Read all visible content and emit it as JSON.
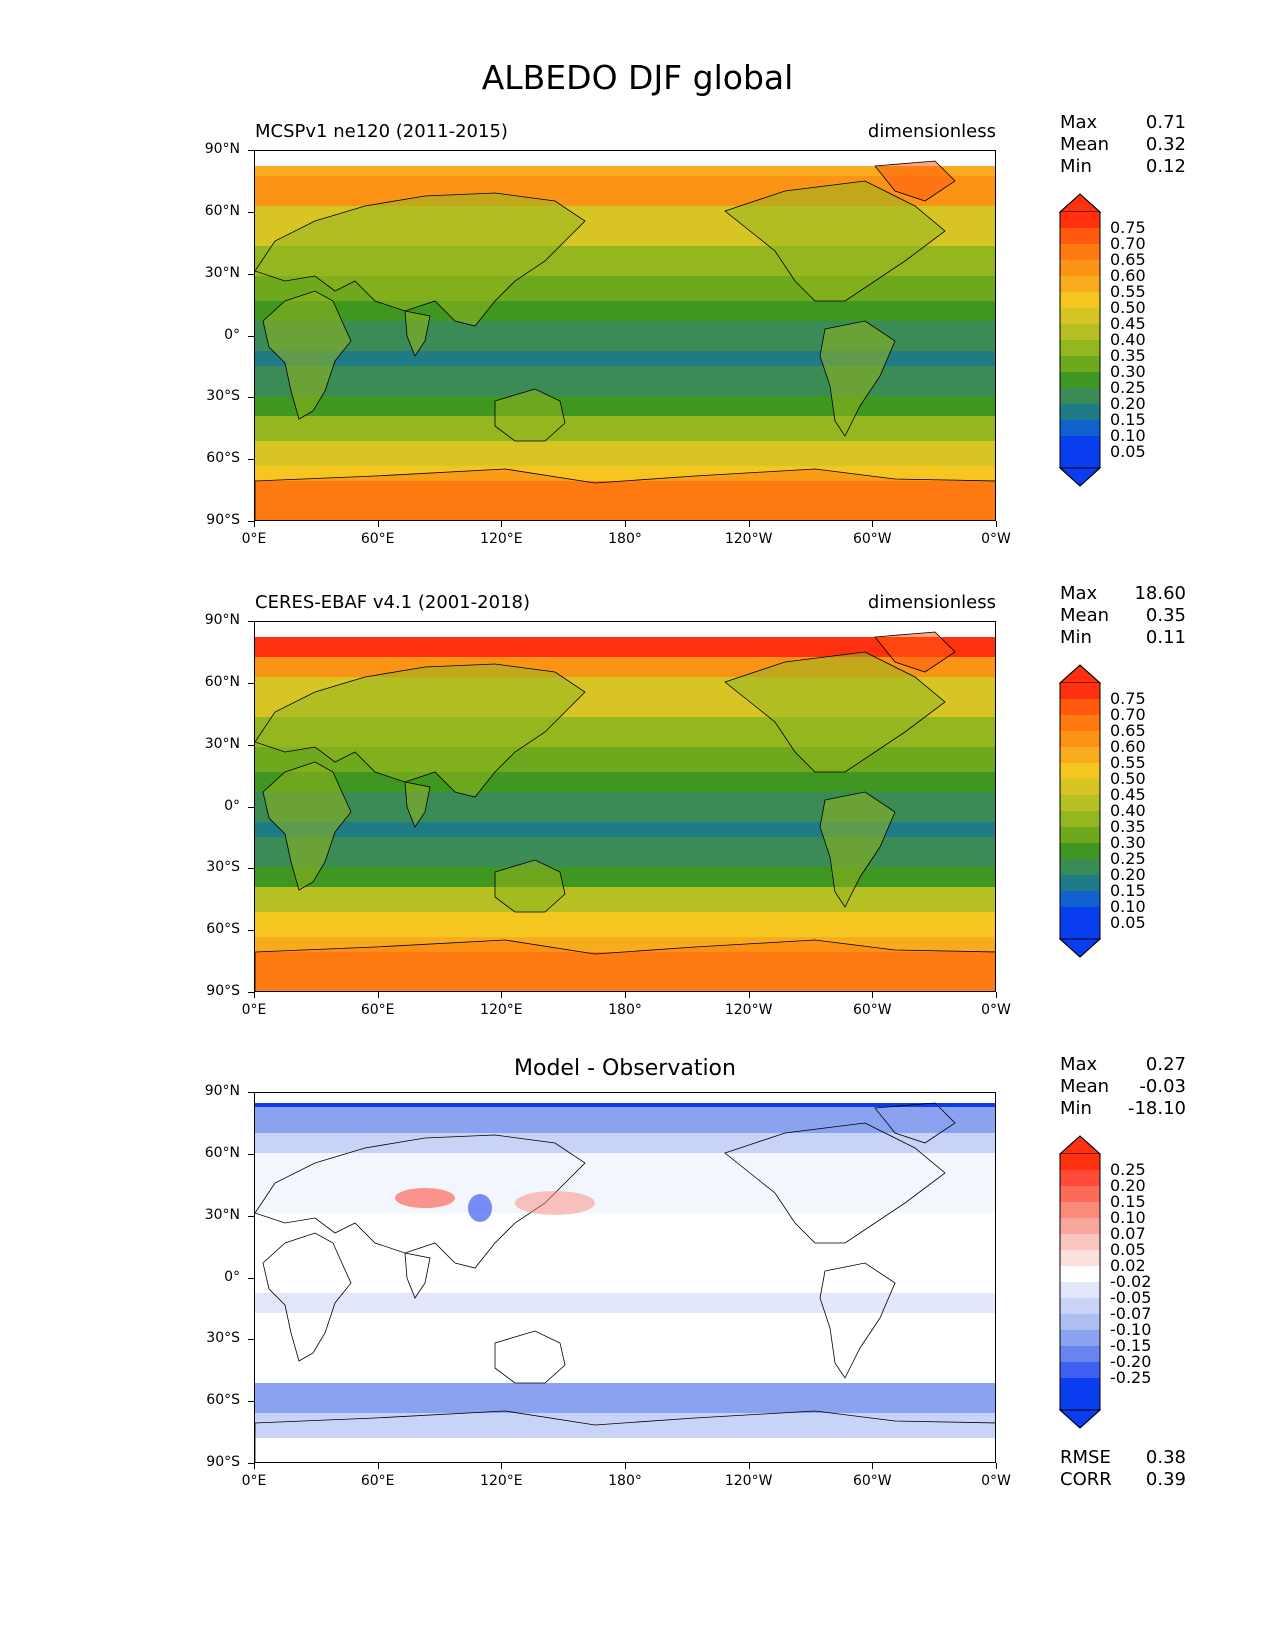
{
  "figure": {
    "title": "ALBEDO DJF global"
  },
  "axes": {
    "lat_ticks": [
      "90°N",
      "60°N",
      "30°N",
      "0°",
      "30°S",
      "60°S",
      "90°S"
    ],
    "lon_ticks": [
      "0°E",
      "60°E",
      "120°E",
      "180°",
      "120°W",
      "60°W",
      "0°W"
    ]
  },
  "panels": [
    {
      "id": "model",
      "title_left": "MCSPv1 ne120 (2011-2015)",
      "title_right": "dimensionless",
      "title_center": "",
      "stats": [
        {
          "label": "Max",
          "value": "0.71"
        },
        {
          "label": "Mean",
          "value": "0.32"
        },
        {
          "label": "Min",
          "value": "0.12"
        }
      ],
      "colorbar_labels": [
        "0.75",
        "0.70",
        "0.65",
        "0.60",
        "0.55",
        "0.50",
        "0.45",
        "0.40",
        "0.35",
        "0.30",
        "0.25",
        "0.20",
        "0.15",
        "0.10",
        "0.05"
      ],
      "colorbar_colors": [
        "#ff3010",
        "#ff5a10",
        "#ff7a10",
        "#fb9415",
        "#f8ab1c",
        "#f5c61f",
        "#d7c524",
        "#b6c022",
        "#94b61f",
        "#6ea81c",
        "#3f9621",
        "#3a8b55",
        "#1f7b86",
        "#1060cf",
        "#0a3cf0",
        "#0a3cf0"
      ],
      "colorbar_top": "#ff3010",
      "colorbar_bottom": "#0a3cf0"
    },
    {
      "id": "obs",
      "title_left": "CERES-EBAF v4.1 (2001-2018)",
      "title_right": "dimensionless",
      "title_center": "",
      "stats": [
        {
          "label": "Max",
          "value": "18.60"
        },
        {
          "label": "Mean",
          "value": "0.35"
        },
        {
          "label": "Min",
          "value": "0.11"
        }
      ],
      "colorbar_labels": [
        "0.75",
        "0.70",
        "0.65",
        "0.60",
        "0.55",
        "0.50",
        "0.45",
        "0.40",
        "0.35",
        "0.30",
        "0.25",
        "0.20",
        "0.15",
        "0.10",
        "0.05"
      ],
      "colorbar_colors": [
        "#ff3010",
        "#ff5a10",
        "#ff7a10",
        "#fb9415",
        "#f8ab1c",
        "#f5c61f",
        "#d7c524",
        "#b6c022",
        "#94b61f",
        "#6ea81c",
        "#3f9621",
        "#3a8b55",
        "#1f7b86",
        "#1060cf",
        "#0a3cf0",
        "#0a3cf0"
      ],
      "colorbar_top": "#ff3010",
      "colorbar_bottom": "#0a3cf0"
    },
    {
      "id": "diff",
      "title_left": "",
      "title_right": "",
      "title_center": "Model - Observation",
      "stats": [
        {
          "label": "Max",
          "value": "0.27"
        },
        {
          "label": "Mean",
          "value": "-0.03"
        },
        {
          "label": "Min",
          "value": "-18.10"
        }
      ],
      "extra_stats": [
        {
          "label": "RMSE",
          "value": "0.38"
        },
        {
          "label": "CORR",
          "value": "0.39"
        }
      ],
      "colorbar_labels": [
        "0.25",
        "0.20",
        "0.15",
        "0.10",
        "0.07",
        "0.05",
        "0.02",
        "-0.02",
        "-0.05",
        "-0.07",
        "-0.10",
        "-0.15",
        "-0.20",
        "-0.25"
      ],
      "colorbar_colors": [
        "#ff3010",
        "#ff4a3a",
        "#fb6a5a",
        "#f98a7c",
        "#f8a79c",
        "#f9c5bd",
        "#fbe1dc",
        "#ffffff",
        "#e2e8fb",
        "#c9d3f7",
        "#aebef3",
        "#8aa2ef",
        "#6884ee",
        "#3f5ef2",
        "#0a3cf0",
        "#0a3cf0"
      ],
      "colorbar_top": "#ff3010",
      "colorbar_bottom": "#0a3cf0"
    }
  ],
  "colors": {
    "frame": "#000000"
  }
}
